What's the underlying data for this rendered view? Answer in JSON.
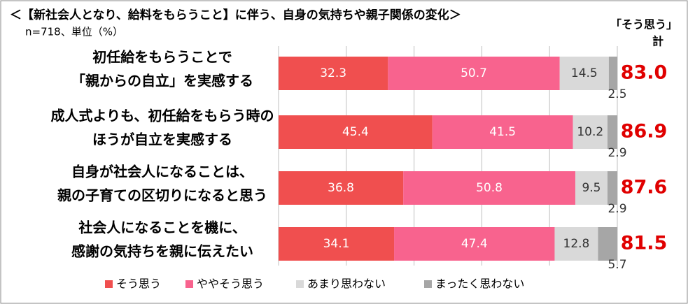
{
  "chart_data": {
    "type": "stacked_bar_horizontal",
    "title": "＜【新社会人となり、給料をもらうこと】に伴う、自身の気持ちや親子関係の変化＞",
    "subtitle": "n=718、単位（%）",
    "categories": [
      [
        "初任給をもらうことで",
        "「親からの自立」を実感する"
      ],
      [
        "成人式よりも、初任給をもらう時の",
        "ほうが自立を実感する"
      ],
      [
        "自身が社会人になることは、",
        "親の子育ての区切りになると思う"
      ],
      [
        "社会人になることを機に、",
        "感謝の気持ちを親に伝えたい"
      ]
    ],
    "series": [
      {
        "name": "そう思う",
        "color": "#f04f4f",
        "values": [
          32.3,
          45.4,
          36.8,
          34.1
        ]
      },
      {
        "name": "ややそう思う",
        "color": "#f8638e",
        "values": [
          50.7,
          41.5,
          50.8,
          47.4
        ]
      },
      {
        "name": "あまり思わない",
        "color": "#d9d9d9",
        "values": [
          14.5,
          10.2,
          9.5,
          12.8
        ]
      },
      {
        "name": "まったく思わない",
        "color": "#a6a6a6",
        "values": [
          2.5,
          2.9,
          2.9,
          5.7
        ]
      }
    ],
    "totals": {
      "title": [
        "「そう思う」",
        "計"
      ],
      "color": "#e00000",
      "values": [
        83,
        86.9,
        87.6,
        81.5
      ],
      "value_labels": [
        "83.0",
        "86.9",
        "87.6",
        "81.5"
      ]
    },
    "xlim": [
      0,
      100
    ],
    "xticks": [
      0,
      20,
      40,
      60,
      80,
      100
    ],
    "grid": true
  }
}
